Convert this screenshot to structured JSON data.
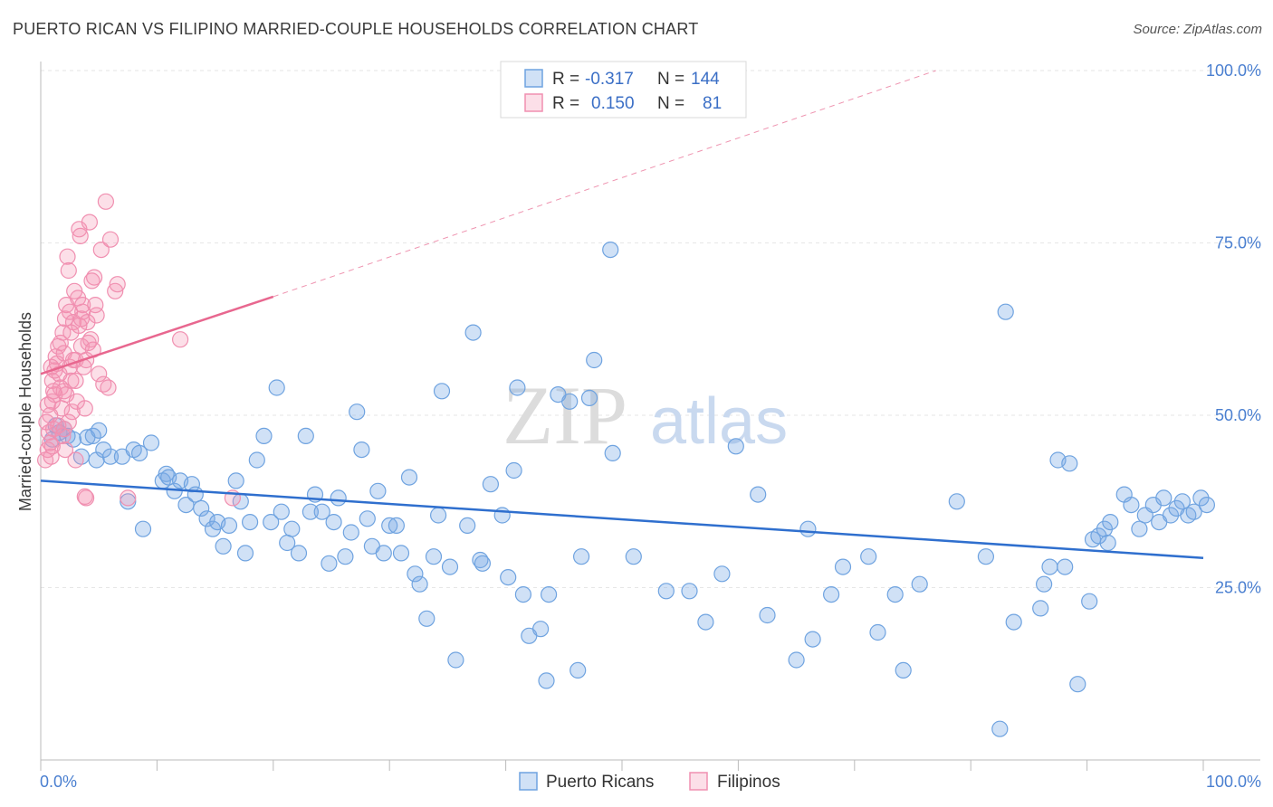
{
  "title": "PUERTO RICAN VS FILIPINO MARRIED-COUPLE HOUSEHOLDS CORRELATION CHART",
  "source": "Source: ZipAtlas.com",
  "watermark": {
    "zip": "ZIP",
    "atlas": "atlas"
  },
  "colors": {
    "blue_fill": "rgba(120,170,230,0.35)",
    "blue_stroke": "#6fa3e0",
    "blue_line": "#2f6fce",
    "pink_fill": "rgba(245,150,180,0.30)",
    "pink_stroke": "#f08fb0",
    "pink_line": "#e8678f",
    "grid": "#e6e6e6",
    "axis_text": "#4a7fd0"
  },
  "legend_top": {
    "rows": [
      {
        "r_label": "R =",
        "r_value": "-0.317",
        "n_label": "N =",
        "n_value": "144",
        "series": "Puerto Ricans"
      },
      {
        "r_label": "R =",
        "r_value": "0.150",
        "n_label": "N =",
        "n_value": "81",
        "series": "Filipinos"
      }
    ]
  },
  "legend_bottom": [
    "Puerto Ricans",
    "Filipinos"
  ],
  "chart_data": {
    "type": "scatter",
    "title": "PUERTO RICAN VS FILIPINO MARRIED-COUPLE HOUSEHOLDS CORRELATION CHART",
    "xlabel": "",
    "ylabel": "Married-couple Households",
    "xlim": [
      0,
      100
    ],
    "ylim": [
      0,
      100
    ],
    "x_tick_labels": [
      "0.0%",
      "100.0%"
    ],
    "y_tick_labels": [
      "100.0%",
      "75.0%",
      "50.0%",
      "25.0%"
    ],
    "y_ticks": [
      100,
      75,
      50,
      25
    ],
    "grid": true,
    "legend": "top-center",
    "series": [
      {
        "name": "Puerto Ricans",
        "r": -0.317,
        "n": 144,
        "trend": {
          "x": [
            0,
            100
          ],
          "y": [
            40.5,
            29.3
          ]
        },
        "points": [
          [
            1.0,
            46.5
          ],
          [
            1.3,
            48.5
          ],
          [
            1.6,
            47.5
          ],
          [
            2.0,
            48.0
          ],
          [
            2.3,
            47.0
          ],
          [
            2.8,
            46.5
          ],
          [
            3.5,
            44.0
          ],
          [
            4.0,
            46.8
          ],
          [
            4.5,
            47.0
          ],
          [
            5.0,
            47.8
          ],
          [
            4.8,
            43.5
          ],
          [
            5.4,
            45.0
          ],
          [
            6.0,
            44.0
          ],
          [
            7.0,
            44.0
          ],
          [
            7.5,
            37.5
          ],
          [
            8.0,
            45.0
          ],
          [
            8.5,
            44.5
          ],
          [
            8.8,
            33.5
          ],
          [
            9.5,
            46.0
          ],
          [
            10.5,
            40.5
          ],
          [
            10.8,
            41.5
          ],
          [
            11.0,
            41.0
          ],
          [
            11.5,
            39.0
          ],
          [
            12.0,
            40.5
          ],
          [
            12.5,
            37.0
          ],
          [
            13.0,
            40.0
          ],
          [
            13.3,
            38.5
          ],
          [
            13.8,
            36.5
          ],
          [
            14.3,
            35.0
          ],
          [
            14.8,
            33.5
          ],
          [
            15.2,
            34.5
          ],
          [
            15.7,
            31.0
          ],
          [
            16.2,
            34.0
          ],
          [
            16.8,
            40.5
          ],
          [
            17.2,
            37.5
          ],
          [
            17.6,
            30.0
          ],
          [
            18.0,
            34.5
          ],
          [
            18.6,
            43.5
          ],
          [
            19.2,
            47.0
          ],
          [
            19.8,
            34.5
          ],
          [
            20.3,
            54.0
          ],
          [
            20.7,
            36.0
          ],
          [
            21.2,
            31.5
          ],
          [
            21.6,
            33.5
          ],
          [
            22.2,
            30.0
          ],
          [
            22.8,
            47.0
          ],
          [
            23.2,
            36.0
          ],
          [
            23.6,
            38.5
          ],
          [
            24.2,
            36.0
          ],
          [
            24.8,
            28.5
          ],
          [
            25.2,
            34.5
          ],
          [
            25.6,
            38.0
          ],
          [
            26.2,
            29.5
          ],
          [
            26.7,
            33.0
          ],
          [
            27.2,
            50.5
          ],
          [
            27.6,
            45.0
          ],
          [
            28.1,
            35.0
          ],
          [
            28.5,
            31.0
          ],
          [
            29.0,
            39.0
          ],
          [
            29.5,
            30.0
          ],
          [
            30.0,
            34.0
          ],
          [
            30.6,
            34.0
          ],
          [
            31.0,
            30.0
          ],
          [
            31.7,
            41.0
          ],
          [
            32.2,
            27.0
          ],
          [
            32.6,
            25.5
          ],
          [
            33.2,
            20.5
          ],
          [
            33.8,
            29.5
          ],
          [
            34.2,
            35.5
          ],
          [
            34.5,
            53.5
          ],
          [
            35.2,
            28.0
          ],
          [
            35.7,
            14.5
          ],
          [
            36.7,
            34.0
          ],
          [
            37.2,
            62.0
          ],
          [
            37.8,
            29.0
          ],
          [
            38.7,
            40.0
          ],
          [
            39.7,
            35.5
          ],
          [
            40.2,
            26.5
          ],
          [
            40.7,
            42.0
          ],
          [
            41.0,
            54.0
          ],
          [
            41.5,
            24.0
          ],
          [
            42.0,
            18.0
          ],
          [
            43.0,
            19.0
          ],
          [
            43.5,
            11.5
          ],
          [
            43.7,
            24.0
          ],
          [
            44.5,
            53.0
          ],
          [
            45.5,
            52.0
          ],
          [
            46.2,
            13.0
          ],
          [
            46.5,
            29.5
          ],
          [
            47.2,
            52.5
          ],
          [
            47.6,
            58.0
          ],
          [
            49.0,
            74.0
          ],
          [
            49.2,
            44.5
          ],
          [
            51.0,
            29.5
          ],
          [
            53.8,
            24.5
          ],
          [
            55.8,
            24.5
          ],
          [
            57.2,
            20.0
          ],
          [
            58.6,
            27.0
          ],
          [
            59.8,
            45.5
          ],
          [
            61.7,
            38.5
          ],
          [
            62.5,
            21.0
          ],
          [
            65.0,
            14.5
          ],
          [
            66.0,
            33.5
          ],
          [
            66.4,
            17.5
          ],
          [
            68.0,
            24.0
          ],
          [
            69.0,
            28.0
          ],
          [
            71.2,
            29.5
          ],
          [
            72.0,
            18.5
          ],
          [
            73.5,
            24.0
          ],
          [
            74.2,
            13.0
          ],
          [
            75.6,
            25.5
          ],
          [
            78.8,
            37.5
          ],
          [
            81.3,
            29.5
          ],
          [
            82.5,
            4.5
          ],
          [
            83.0,
            65.0
          ],
          [
            83.7,
            20.0
          ],
          [
            86.0,
            22.0
          ],
          [
            86.3,
            25.5
          ],
          [
            86.8,
            28.0
          ],
          [
            87.5,
            43.5
          ],
          [
            88.1,
            28.0
          ],
          [
            88.5,
            43.0
          ],
          [
            89.2,
            11.0
          ],
          [
            90.2,
            23.0
          ],
          [
            90.5,
            32.0
          ],
          [
            91.0,
            32.5
          ],
          [
            91.5,
            33.5
          ],
          [
            91.8,
            31.5
          ],
          [
            92.0,
            34.5
          ],
          [
            93.2,
            38.5
          ],
          [
            93.8,
            37.0
          ],
          [
            94.5,
            33.5
          ],
          [
            95.0,
            35.5
          ],
          [
            95.7,
            37.0
          ],
          [
            96.2,
            34.5
          ],
          [
            96.6,
            38.0
          ],
          [
            97.2,
            35.5
          ],
          [
            97.7,
            36.5
          ],
          [
            98.2,
            37.5
          ],
          [
            98.7,
            35.5
          ],
          [
            99.2,
            36.0
          ],
          [
            99.8,
            38.0
          ],
          [
            100.3,
            37.0
          ],
          [
            38.0,
            28.5
          ]
        ]
      },
      {
        "name": "Filipinos",
        "r": 0.15,
        "n": 81,
        "trend": {
          "x": [
            0,
            20
          ],
          "y": [
            56.0,
            67.2
          ]
        },
        "trend_extension": {
          "x": [
            20,
            77
          ],
          "y": [
            67.2,
            100
          ]
        },
        "points": [
          [
            0.4,
            43.5
          ],
          [
            0.6,
            45.0
          ],
          [
            0.7,
            47.5
          ],
          [
            0.8,
            50.0
          ],
          [
            0.9,
            44.0
          ],
          [
            1.0,
            52.0
          ],
          [
            1.0,
            55.0
          ],
          [
            1.1,
            48.0
          ],
          [
            1.2,
            53.0
          ],
          [
            1.3,
            58.5
          ],
          [
            1.4,
            57.5
          ],
          [
            1.5,
            60.0
          ],
          [
            1.6,
            56.0
          ],
          [
            1.7,
            54.0
          ],
          [
            1.8,
            51.0
          ],
          [
            1.9,
            62.0
          ],
          [
            2.0,
            59.0
          ],
          [
            2.0,
            48.0
          ],
          [
            2.1,
            64.0
          ],
          [
            2.2,
            66.0
          ],
          [
            2.2,
            53.0
          ],
          [
            2.3,
            73.0
          ],
          [
            2.4,
            71.0
          ],
          [
            2.5,
            57.0
          ],
          [
            2.6,
            55.0
          ],
          [
            2.7,
            50.5
          ],
          [
            2.8,
            63.5
          ],
          [
            2.9,
            68.0
          ],
          [
            3.0,
            58.0
          ],
          [
            3.0,
            43.5
          ],
          [
            3.1,
            52.0
          ],
          [
            3.2,
            67.0
          ],
          [
            3.3,
            77.0
          ],
          [
            3.4,
            76.0
          ],
          [
            3.5,
            60.0
          ],
          [
            3.6,
            65.0
          ],
          [
            3.7,
            57.0
          ],
          [
            3.8,
            51.0
          ],
          [
            3.9,
            38.0
          ],
          [
            4.0,
            63.5
          ],
          [
            4.2,
            78.0
          ],
          [
            4.3,
            61.0
          ],
          [
            4.5,
            59.5
          ],
          [
            4.6,
            70.0
          ],
          [
            4.8,
            64.5
          ],
          [
            5.0,
            56.0
          ],
          [
            5.2,
            74.0
          ],
          [
            5.4,
            54.5
          ],
          [
            5.6,
            81.0
          ],
          [
            5.8,
            54.0
          ],
          [
            6.0,
            75.5
          ],
          [
            6.4,
            68.0
          ],
          [
            6.6,
            69.0
          ],
          [
            7.5,
            38.0
          ],
          [
            12.0,
            61.0
          ],
          [
            16.5,
            38.0
          ],
          [
            1.0,
            45.5
          ],
          [
            1.5,
            48.5
          ],
          [
            2.0,
            53.5
          ],
          [
            2.5,
            65.0
          ],
          [
            2.8,
            58.0
          ],
          [
            3.3,
            63.0
          ],
          [
            3.6,
            66.0
          ],
          [
            4.1,
            60.5
          ],
          [
            0.5,
            49.0
          ],
          [
            0.8,
            46.0
          ],
          [
            1.2,
            56.5
          ],
          [
            1.7,
            60.5
          ],
          [
            2.4,
            49.0
          ],
          [
            3.0,
            55.0
          ],
          [
            3.5,
            64.0
          ],
          [
            4.4,
            69.5
          ],
          [
            0.6,
            51.5
          ],
          [
            1.9,
            47.0
          ],
          [
            2.6,
            62.0
          ],
          [
            3.8,
            38.2
          ],
          [
            4.7,
            66.0
          ],
          [
            1.1,
            53.5
          ],
          [
            0.9,
            57.0
          ],
          [
            2.1,
            45.0
          ],
          [
            3.9,
            58.0
          ]
        ]
      }
    ]
  }
}
